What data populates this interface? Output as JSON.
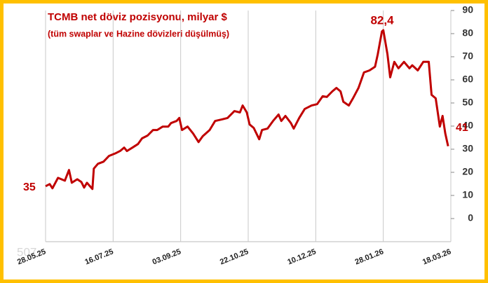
{
  "chart_data": {
    "type": "line",
    "title": "TCMB net döviz pozisyonu, milyar $",
    "subtitle": "(tüm swaplar ve Hazine dövizleri düşülmüş)",
    "watermark": "507",
    "annotations": [
      {
        "text": "35"
      },
      {
        "text": "82,4"
      },
      {
        "text": "41"
      }
    ],
    "x": [
      "2025-05-28",
      "2025-05-31",
      "2025-06-02",
      "2025-06-06",
      "2025-06-11",
      "2025-06-14",
      "2025-06-16",
      "2025-06-20",
      "2025-06-23",
      "2025-06-25",
      "2025-06-27",
      "2025-07-01",
      "2025-07-02",
      "2025-07-05",
      "2025-07-09",
      "2025-07-13",
      "2025-07-18",
      "2025-07-21",
      "2025-07-24",
      "2025-07-26",
      "2025-07-30",
      "2025-08-03",
      "2025-08-06",
      "2025-08-10",
      "2025-08-14",
      "2025-08-17",
      "2025-08-21",
      "2025-08-25",
      "2025-08-27",
      "2025-08-31",
      "2025-09-02",
      "2025-09-04",
      "2025-09-08",
      "2025-09-12",
      "2025-09-16",
      "2025-09-19",
      "2025-09-24",
      "2025-09-28",
      "2025-10-03",
      "2025-10-07",
      "2025-10-12",
      "2025-10-16",
      "2025-10-18",
      "2025-10-21",
      "2025-10-23",
      "2025-10-26",
      "2025-10-30",
      "2025-11-01",
      "2025-11-05",
      "2025-11-09",
      "2025-11-13",
      "2025-11-15",
      "2025-11-18",
      "2025-11-22",
      "2025-11-24",
      "2025-11-28",
      "2025-12-02",
      "2025-12-07",
      "2025-12-11",
      "2025-12-15",
      "2025-12-18",
      "2025-12-22",
      "2025-12-25",
      "2025-12-28",
      "2025-12-30",
      "2026-01-03",
      "2026-01-06",
      "2026-01-10",
      "2026-01-14",
      "2026-01-18",
      "2026-01-22",
      "2026-01-24",
      "2026-01-27",
      "2026-01-28",
      "2026-01-31",
      "2026-02-02",
      "2026-02-05",
      "2026-02-08",
      "2026-02-12",
      "2026-02-16",
      "2026-02-18",
      "2026-02-22",
      "2026-02-26",
      "2026-03-02",
      "2026-03-04",
      "2026-03-07",
      "2026-03-10",
      "2026-03-12",
      "2026-03-14",
      "2026-03-16"
    ],
    "series": [
      {
        "name": "TCMB net döviz pozisyonu",
        "color": "#c00000",
        "values": [
          14.0,
          14.9,
          13.1,
          17.6,
          16.4,
          21.0,
          15.5,
          17.0,
          15.8,
          13.4,
          15.5,
          12.8,
          21.6,
          23.7,
          24.6,
          27.1,
          28.3,
          29.2,
          30.7,
          29.2,
          30.7,
          32.2,
          34.7,
          35.9,
          38.3,
          38.3,
          39.8,
          39.8,
          41.3,
          42.2,
          43.5,
          38.3,
          39.8,
          36.8,
          33.1,
          35.6,
          38.3,
          42.2,
          42.9,
          43.5,
          46.5,
          45.9,
          48.9,
          45.9,
          40.7,
          39.2,
          34.3,
          38.3,
          38.9,
          42.2,
          45.0,
          42.2,
          44.4,
          41.3,
          38.9,
          43.5,
          47.4,
          48.9,
          49.5,
          52.9,
          52.6,
          55.0,
          56.5,
          55.0,
          50.5,
          48.9,
          52.0,
          56.5,
          63.2,
          64.1,
          65.7,
          71.1,
          80.9,
          81.5,
          71.1,
          61.1,
          67.8,
          65.0,
          67.8,
          65.0,
          66.3,
          64.1,
          67.8,
          67.8,
          53.5,
          52.0,
          39.8,
          44.4,
          36.8,
          31.3
        ]
      }
    ],
    "xlim": [
      "2025-05-28",
      "2026-03-18"
    ],
    "xticks": [
      {
        "value": "2025-05-28",
        "label": "28.05.25"
      },
      {
        "value": "2025-07-16",
        "label": "16.07.25"
      },
      {
        "value": "2025-09-03",
        "label": "03.09.25"
      },
      {
        "value": "2025-10-22",
        "label": "22.10.25"
      },
      {
        "value": "2025-12-10",
        "label": "10.12.25"
      },
      {
        "value": "2026-01-28",
        "label": "28.01.26"
      },
      {
        "value": "2026-03-18",
        "label": "18.03.26"
      }
    ],
    "ylim": [
      -10,
      90
    ],
    "yticks": [
      0,
      10,
      20,
      30,
      40,
      50,
      60,
      70,
      80,
      90
    ],
    "grid": "x"
  }
}
